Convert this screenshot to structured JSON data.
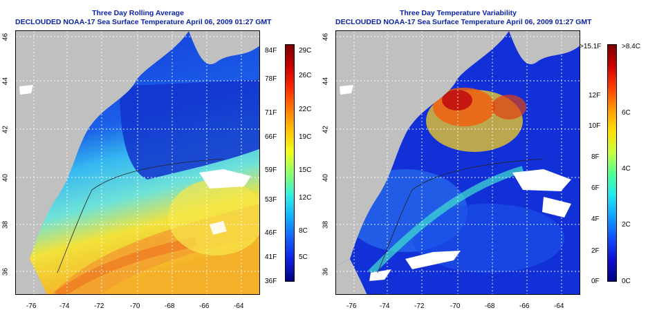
{
  "left_panel": {
    "title_line1": "Three Day Rolling Average",
    "title_line2": "DECLOUDED NOAA-17 Sea Surface Temperature April 06, 2009 01:27 GMT",
    "lon_ticks": [
      "-76",
      "-74",
      "-72",
      "-70",
      "-68",
      "-66",
      "-64"
    ],
    "lat_ticks": [
      "46",
      "44",
      "42",
      "40",
      "38",
      "36"
    ],
    "colorbar_f": [
      "84F",
      "78F",
      "71F",
      "66F",
      "59F",
      "53F",
      "46F",
      "41F",
      "36F"
    ],
    "colorbar_c": [
      "29C",
      "26C",
      "22C",
      "19C",
      "15C",
      "12C",
      "8C",
      "5C"
    ]
  },
  "right_panel": {
    "title_line1": "Three Day Temperature Variability",
    "title_line2": "DECLOUDED NOAA-17 Sea Surface Temperature April 06, 2009 01:27 GMT",
    "lon_ticks": [
      "-76",
      "-74",
      "-72",
      "-70",
      "-68",
      "-66",
      "-64"
    ],
    "lat_ticks": [
      "46",
      "44",
      "42",
      "40",
      "38",
      "36"
    ],
    "colorbar_f": [
      ">15.1F",
      "12F",
      "10F",
      "8F",
      "6F",
      "4F",
      "2F",
      "0F"
    ],
    "colorbar_c": [
      ">8.4C",
      "6C",
      "4C",
      "2C",
      "0C"
    ]
  },
  "colors": {
    "title": "#0a22a8",
    "land": "#c0c0c0",
    "deep_blue": "#1a3fd6",
    "grid": "#ffffff"
  }
}
